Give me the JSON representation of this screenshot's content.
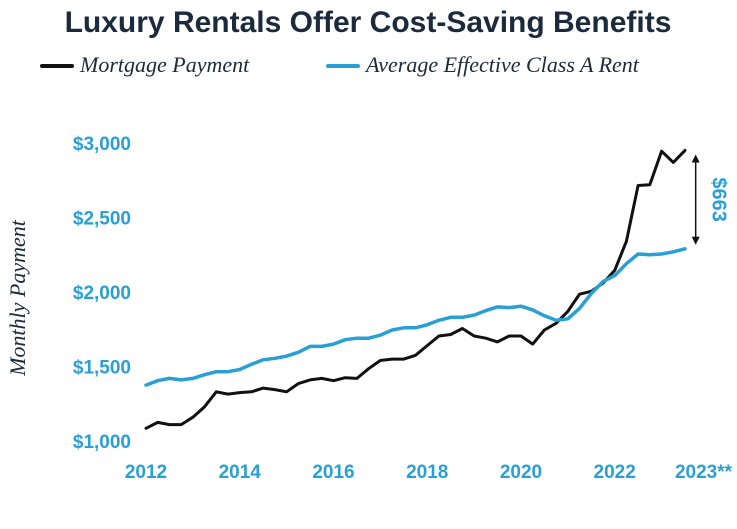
{
  "chart_data": {
    "type": "line",
    "title": "Luxury Rentals Offer Cost-Saving Benefits",
    "ylabel": "Monthly Payment",
    "xlabel": "",
    "ylim": [
      1000,
      3000
    ],
    "xlim": [
      2012,
      2023.5
    ],
    "grid": false,
    "legend_position": "top",
    "x_ticks": [
      {
        "value": 2012,
        "label": "2012"
      },
      {
        "value": 2014,
        "label": "2014"
      },
      {
        "value": 2016,
        "label": "2016"
      },
      {
        "value": 2018,
        "label": "2018"
      },
      {
        "value": 2020,
        "label": "2020"
      },
      {
        "value": 2022,
        "label": "2022"
      },
      {
        "value": 2023.5,
        "label": "2023**"
      }
    ],
    "y_ticks": [
      {
        "value": 1000,
        "label": "$1,000"
      },
      {
        "value": 1500,
        "label": "$1,500"
      },
      {
        "value": 2000,
        "label": "$2,000"
      },
      {
        "value": 2500,
        "label": "$2,500"
      },
      {
        "value": 3000,
        "label": "$3,000"
      }
    ],
    "series": [
      {
        "name": "Mortgage Payment",
        "color": "#111111",
        "points": [
          [
            2012.0,
            1085
          ],
          [
            2012.25,
            1125
          ],
          [
            2012.5,
            1110
          ],
          [
            2012.75,
            1110
          ],
          [
            2013.0,
            1160
          ],
          [
            2013.25,
            1230
          ],
          [
            2013.5,
            1330
          ],
          [
            2013.75,
            1315
          ],
          [
            2014.0,
            1325
          ],
          [
            2014.25,
            1330
          ],
          [
            2014.5,
            1355
          ],
          [
            2014.75,
            1345
          ],
          [
            2015.0,
            1330
          ],
          [
            2015.25,
            1385
          ],
          [
            2015.5,
            1410
          ],
          [
            2015.75,
            1420
          ],
          [
            2016.0,
            1405
          ],
          [
            2016.25,
            1425
          ],
          [
            2016.5,
            1420
          ],
          [
            2016.75,
            1485
          ],
          [
            2017.0,
            1540
          ],
          [
            2017.25,
            1550
          ],
          [
            2017.5,
            1550
          ],
          [
            2017.75,
            1575
          ],
          [
            2018.0,
            1640
          ],
          [
            2018.25,
            1705
          ],
          [
            2018.5,
            1715
          ],
          [
            2018.75,
            1755
          ],
          [
            2019.0,
            1705
          ],
          [
            2019.25,
            1690
          ],
          [
            2019.5,
            1665
          ],
          [
            2019.75,
            1705
          ],
          [
            2020.0,
            1705
          ],
          [
            2020.25,
            1650
          ],
          [
            2020.5,
            1745
          ],
          [
            2020.75,
            1790
          ],
          [
            2021.0,
            1870
          ],
          [
            2021.25,
            1985
          ],
          [
            2021.5,
            2005
          ],
          [
            2021.75,
            2060
          ],
          [
            2022.0,
            2145
          ],
          [
            2022.25,
            2340
          ],
          [
            2022.5,
            2715
          ],
          [
            2022.75,
            2720
          ],
          [
            2023.0,
            2945
          ],
          [
            2023.25,
            2870
          ],
          [
            2023.5,
            2950
          ]
        ]
      },
      {
        "name": "Average Effective Class A Rent",
        "color": "#2a9fd6",
        "points": [
          [
            2012.0,
            1375
          ],
          [
            2012.25,
            1405
          ],
          [
            2012.5,
            1420
          ],
          [
            2012.75,
            1410
          ],
          [
            2013.0,
            1420
          ],
          [
            2013.25,
            1445
          ],
          [
            2013.5,
            1465
          ],
          [
            2013.75,
            1465
          ],
          [
            2014.0,
            1480
          ],
          [
            2014.25,
            1515
          ],
          [
            2014.5,
            1545
          ],
          [
            2014.75,
            1555
          ],
          [
            2015.0,
            1570
          ],
          [
            2015.25,
            1595
          ],
          [
            2015.5,
            1635
          ],
          [
            2015.75,
            1635
          ],
          [
            2016.0,
            1650
          ],
          [
            2016.25,
            1680
          ],
          [
            2016.5,
            1690
          ],
          [
            2016.75,
            1690
          ],
          [
            2017.0,
            1710
          ],
          [
            2017.25,
            1745
          ],
          [
            2017.5,
            1760
          ],
          [
            2017.75,
            1760
          ],
          [
            2018.0,
            1780
          ],
          [
            2018.25,
            1810
          ],
          [
            2018.5,
            1830
          ],
          [
            2018.75,
            1830
          ],
          [
            2019.0,
            1845
          ],
          [
            2019.25,
            1875
          ],
          [
            2019.5,
            1900
          ],
          [
            2019.75,
            1895
          ],
          [
            2020.0,
            1905
          ],
          [
            2020.25,
            1880
          ],
          [
            2020.5,
            1840
          ],
          [
            2020.75,
            1810
          ],
          [
            2021.0,
            1820
          ],
          [
            2021.25,
            1890
          ],
          [
            2021.5,
            1990
          ],
          [
            2021.75,
            2070
          ],
          [
            2022.0,
            2110
          ],
          [
            2022.25,
            2190
          ],
          [
            2022.5,
            2255
          ],
          [
            2022.75,
            2250
          ],
          [
            2023.0,
            2255
          ],
          [
            2023.25,
            2270
          ],
          [
            2023.5,
            2290
          ]
        ]
      }
    ],
    "annotations": [
      {
        "type": "bracket-arrow",
        "text": "$663",
        "x": 2023.6,
        "y_from": 2290,
        "y_to": 2950
      }
    ]
  }
}
